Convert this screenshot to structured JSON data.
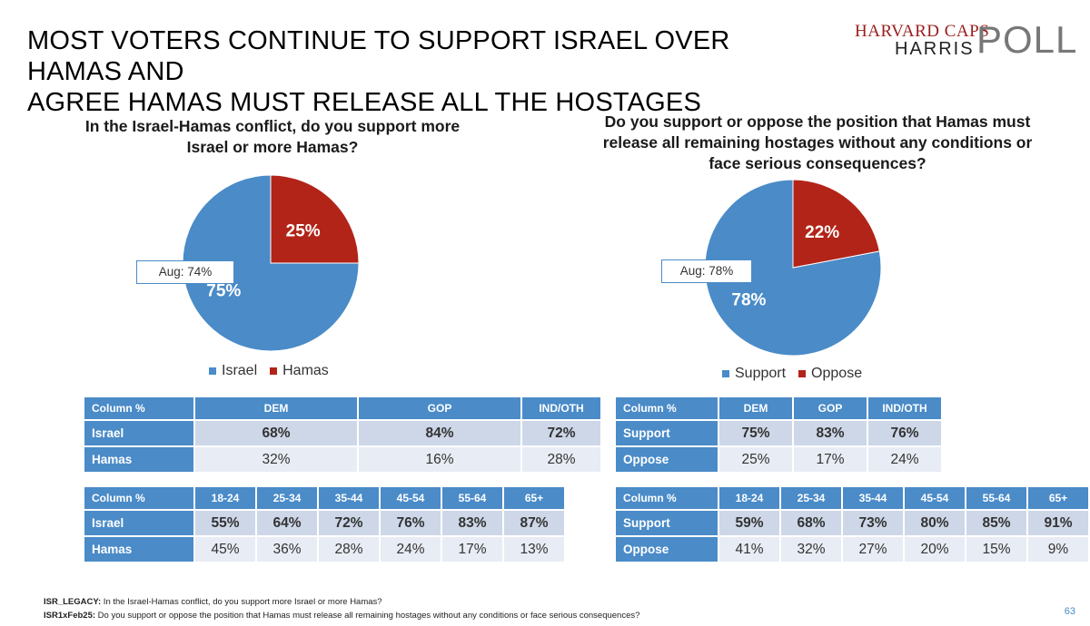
{
  "title_line1": "MOST VOTERS CONTINUE TO SUPPORT ISRAEL OVER HAMAS AND",
  "title_line2": "AGREE HAMAS MUST RELEASE ALL THE HOSTAGES",
  "logo": {
    "line1": "HARVARD CAPS",
    "line2": "HARRIS",
    "line3": "POLL"
  },
  "colors": {
    "blue": "#4a8bc8",
    "red": "#b22418"
  },
  "chart_data": [
    {
      "type": "pie",
      "title_line1": "In the Israel-Hamas conflict, do you support more",
      "title_line2": "Israel or more Hamas?",
      "categories": [
        "Israel",
        "Hamas"
      ],
      "values": [
        75,
        25
      ],
      "labels": [
        "75%",
        "25%"
      ],
      "legend": [
        "Israel",
        "Hamas"
      ],
      "annotation": "Aug: 74%"
    },
    {
      "type": "pie",
      "title_line1": "Do you support or oppose the position that Hamas must",
      "title_line2": "release all remaining hostages without any conditions or",
      "title_line3": "face serious consequences?",
      "categories": [
        "Support",
        "Oppose"
      ],
      "values": [
        78,
        22
      ],
      "labels": [
        "78%",
        "22%"
      ],
      "legend": [
        "Support",
        "Oppose"
      ],
      "annotation": "Aug: 78%"
    }
  ],
  "left_party_table": {
    "header": [
      "Column %",
      "DEM",
      "GOP",
      "IND/OTH"
    ],
    "rows": [
      [
        "Israel",
        "68%",
        "84%",
        "72%"
      ],
      [
        "Hamas",
        "32%",
        "16%",
        "28%"
      ]
    ]
  },
  "left_age_table": {
    "header": [
      "Column %",
      "18-24",
      "25-34",
      "35-44",
      "45-54",
      "55-64",
      "65+"
    ],
    "rows": [
      [
        "Israel",
        "55%",
        "64%",
        "72%",
        "76%",
        "83%",
        "87%"
      ],
      [
        "Hamas",
        "45%",
        "36%",
        "28%",
        "24%",
        "17%",
        "13%"
      ]
    ]
  },
  "right_party_table": {
    "header": [
      "Column %",
      "DEM",
      "GOP",
      "IND/OTH"
    ],
    "rows": [
      [
        "Support",
        "75%",
        "83%",
        "76%"
      ],
      [
        "Oppose",
        "25%",
        "17%",
        "24%"
      ]
    ]
  },
  "right_age_table": {
    "header": [
      "Column %",
      "18-24",
      "25-34",
      "35-44",
      "45-54",
      "55-64",
      "65+"
    ],
    "rows": [
      [
        "Support",
        "59%",
        "68%",
        "73%",
        "80%",
        "85%",
        "91%"
      ],
      [
        "Oppose",
        "41%",
        "32%",
        "27%",
        "20%",
        "15%",
        "9%"
      ]
    ]
  },
  "footnotes": [
    {
      "code": "ISR_LEGACY:",
      "text": " In the Israel-Hamas conflict, do you support more Israel or more Hamas?"
    },
    {
      "code": "ISR1xFeb25:",
      "text": " Do you support or oppose the position that Hamas must release all remaining hostages without any conditions or face serious consequences?"
    }
  ],
  "page_number": "63"
}
